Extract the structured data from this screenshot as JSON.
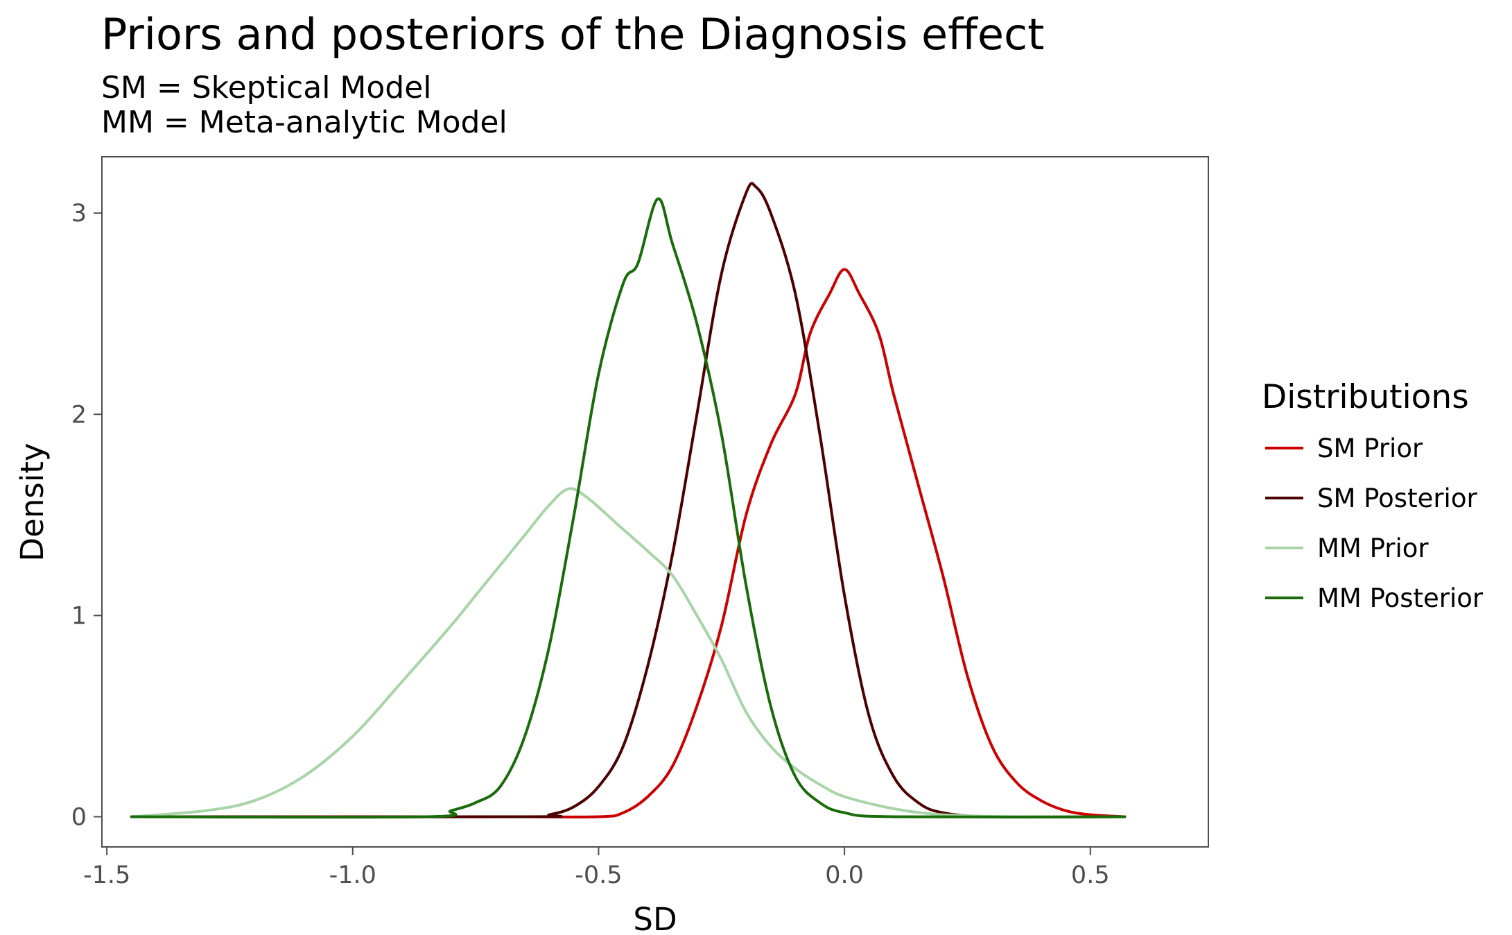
{
  "chart_data": {
    "type": "line",
    "title": "Priors and posteriors of the Diagnosis effect",
    "subtitle": [
      "SM = Skeptical Model",
      "MM = Meta-analytic Model"
    ],
    "xlabel": "SD",
    "ylabel": "Density",
    "xlim": [
      -1.51,
      0.74
    ],
    "ylim": [
      -0.15,
      3.28
    ],
    "x_ticks": [
      -1.5,
      -1.0,
      -0.5,
      0.0,
      0.5
    ],
    "x_tick_labels": [
      "-1.5",
      "-1.0",
      "-0.5",
      "0.0",
      "0.5"
    ],
    "y_ticks": [
      0,
      1,
      2,
      3
    ],
    "y_tick_labels": [
      "0",
      "1",
      "2",
      "3"
    ],
    "grid": false,
    "legend": {
      "title": "Distributions",
      "position": "right"
    },
    "series": [
      {
        "name": "SM Prior",
        "color": "#CC0000",
        "points": [
          [
            -1.45,
            0
          ],
          [
            -0.7,
            0
          ],
          [
            -0.5,
            0.0
          ],
          [
            -0.45,
            0.02
          ],
          [
            -0.4,
            0.1
          ],
          [
            -0.35,
            0.25
          ],
          [
            -0.3,
            0.55
          ],
          [
            -0.25,
            0.95
          ],
          [
            -0.2,
            1.5
          ],
          [
            -0.15,
            1.85
          ],
          [
            -0.1,
            2.1
          ],
          [
            -0.07,
            2.4
          ],
          [
            -0.03,
            2.6
          ],
          [
            0.0,
            2.72
          ],
          [
            0.03,
            2.6
          ],
          [
            0.07,
            2.4
          ],
          [
            0.1,
            2.1
          ],
          [
            0.15,
            1.65
          ],
          [
            0.2,
            1.2
          ],
          [
            0.25,
            0.7
          ],
          [
            0.3,
            0.35
          ],
          [
            0.35,
            0.17
          ],
          [
            0.4,
            0.08
          ],
          [
            0.45,
            0.03
          ],
          [
            0.5,
            0.01
          ],
          [
            0.57,
            0
          ]
        ]
      },
      {
        "name": "SM Posterior",
        "color": "#4D0000",
        "points": [
          [
            -1.45,
            0
          ],
          [
            -0.65,
            0
          ],
          [
            -0.6,
            0.01
          ],
          [
            -0.55,
            0.05
          ],
          [
            -0.5,
            0.15
          ],
          [
            -0.45,
            0.35
          ],
          [
            -0.4,
            0.75
          ],
          [
            -0.35,
            1.3
          ],
          [
            -0.3,
            2.0
          ],
          [
            -0.25,
            2.7
          ],
          [
            -0.2,
            3.1
          ],
          [
            -0.18,
            3.13
          ],
          [
            -0.15,
            3.0
          ],
          [
            -0.1,
            2.6
          ],
          [
            -0.05,
            1.9
          ],
          [
            0.0,
            1.1
          ],
          [
            0.05,
            0.5
          ],
          [
            0.1,
            0.2
          ],
          [
            0.15,
            0.07
          ],
          [
            0.2,
            0.02
          ],
          [
            0.3,
            0
          ],
          [
            0.57,
            0
          ]
        ]
      },
      {
        "name": "MM Prior",
        "color": "#A8D4A8",
        "points": [
          [
            -1.45,
            0
          ],
          [
            -1.3,
            0.03
          ],
          [
            -1.2,
            0.08
          ],
          [
            -1.1,
            0.2
          ],
          [
            -1.0,
            0.4
          ],
          [
            -0.9,
            0.67
          ],
          [
            -0.8,
            0.95
          ],
          [
            -0.75,
            1.1
          ],
          [
            -0.7,
            1.25
          ],
          [
            -0.65,
            1.4
          ],
          [
            -0.6,
            1.55
          ],
          [
            -0.56,
            1.63
          ],
          [
            -0.52,
            1.58
          ],
          [
            -0.46,
            1.45
          ],
          [
            -0.4,
            1.32
          ],
          [
            -0.35,
            1.2
          ],
          [
            -0.3,
            1.0
          ],
          [
            -0.25,
            0.78
          ],
          [
            -0.2,
            0.52
          ],
          [
            -0.15,
            0.35
          ],
          [
            -0.1,
            0.24
          ],
          [
            -0.05,
            0.16
          ],
          [
            0.0,
            0.1
          ],
          [
            0.1,
            0.04
          ],
          [
            0.2,
            0.01
          ],
          [
            0.35,
            0
          ],
          [
            0.57,
            0
          ]
        ]
      },
      {
        "name": "MM Posterior",
        "color": "#1A6B0A",
        "points": [
          [
            -1.45,
            0
          ],
          [
            -0.85,
            0
          ],
          [
            -0.8,
            0.03
          ],
          [
            -0.75,
            0.07
          ],
          [
            -0.7,
            0.15
          ],
          [
            -0.65,
            0.4
          ],
          [
            -0.6,
            0.85
          ],
          [
            -0.55,
            1.5
          ],
          [
            -0.5,
            2.2
          ],
          [
            -0.45,
            2.65
          ],
          [
            -0.42,
            2.75
          ],
          [
            -0.38,
            3.07
          ],
          [
            -0.35,
            2.85
          ],
          [
            -0.3,
            2.45
          ],
          [
            -0.25,
            1.9
          ],
          [
            -0.2,
            1.15
          ],
          [
            -0.15,
            0.55
          ],
          [
            -0.1,
            0.2
          ],
          [
            -0.05,
            0.07
          ],
          [
            0.0,
            0.02
          ],
          [
            0.1,
            0
          ],
          [
            0.57,
            0
          ]
        ]
      }
    ]
  }
}
